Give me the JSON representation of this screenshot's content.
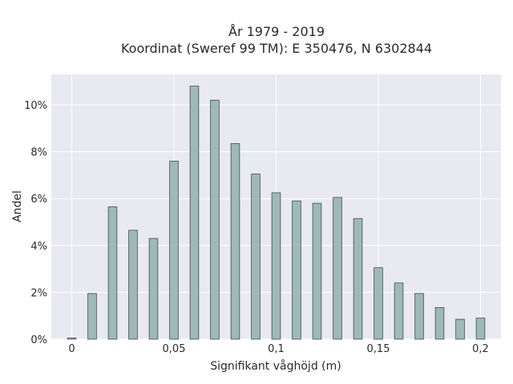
{
  "chart_data": {
    "type": "bar",
    "title_line1": "År 1979 - 2019",
    "title_line2": "Koordinat (Sweref 99 TM): E 350476, N 6302844",
    "xlabel": "Signifikant våghöjd (m)",
    "ylabel": "Andel",
    "x": [
      0,
      0.01,
      0.02,
      0.03,
      0.04,
      0.05,
      0.06,
      0.07,
      0.08,
      0.09,
      0.1,
      0.11,
      0.12,
      0.13,
      0.14,
      0.15,
      0.16,
      0.17,
      0.18,
      0.19,
      0.2
    ],
    "values": [
      0.05,
      1.95,
      5.65,
      4.65,
      4.3,
      7.6,
      10.8,
      10.2,
      8.35,
      7.05,
      6.25,
      5.9,
      5.8,
      6.05,
      5.15,
      3.05,
      2.4,
      1.95,
      1.35,
      0.85,
      0.9
    ],
    "xlim": [
      -0.01,
      0.21
    ],
    "ylim": [
      0,
      11.3
    ],
    "x_ticks": [
      {
        "value": 0,
        "label": "0"
      },
      {
        "value": 0.05,
        "label": "0,05"
      },
      {
        "value": 0.1,
        "label": "0,1"
      },
      {
        "value": 0.15,
        "label": "0,15"
      },
      {
        "value": 0.2,
        "label": "0,2"
      }
    ],
    "y_ticks": [
      {
        "value": 0,
        "label": "0%"
      },
      {
        "value": 2,
        "label": "2%"
      },
      {
        "value": 4,
        "label": "4%"
      },
      {
        "value": 6,
        "label": "6%"
      },
      {
        "value": 8,
        "label": "8%"
      },
      {
        "value": 10,
        "label": "10%"
      }
    ],
    "grid": true,
    "colors": {
      "bar_fill": "#9fb8b8",
      "bar_stroke": "#3d4d4d",
      "plot_bg": "#e9e9f1",
      "grid": "#ffffff"
    }
  }
}
